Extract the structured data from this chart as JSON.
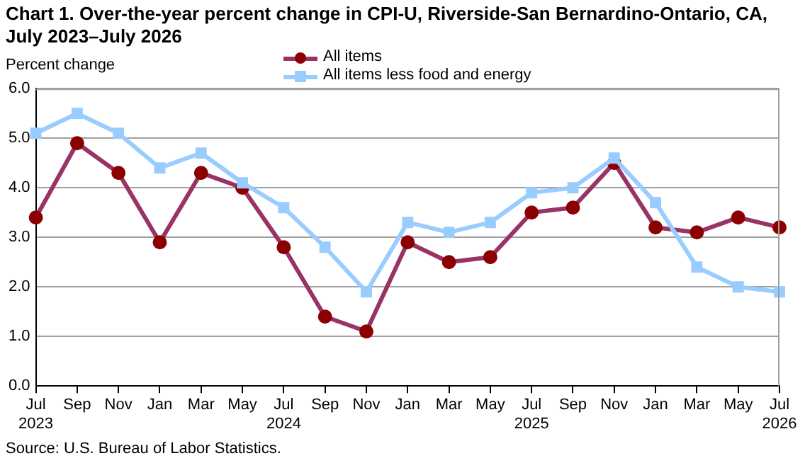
{
  "chart_data": {
    "type": "line",
    "title": "Chart 1. Over-the-year percent change in CPI-U, Riverside-San Bernardino-Ontario, CA, July 2023–July 2026",
    "ylabel": "Percent change",
    "annotations": [
      "Source: U.S. Bureau of Labor Statistics."
    ],
    "categories": [
      "Jul\n2023",
      "Sep",
      "Nov",
      "Jan",
      "Mar",
      "May",
      "Jul\n2024",
      "Sep",
      "Nov",
      "Jan",
      "Mar",
      "May",
      "Jul\n2025",
      "Sep",
      "Nov",
      "Jan",
      "Mar",
      "May",
      "Jul\n2026"
    ],
    "series": [
      {
        "name": "All items",
        "color": "#993366",
        "marker": "circle",
        "values": [
          3.4,
          4.9,
          4.3,
          2.9,
          4.3,
          4.0,
          2.8,
          1.4,
          1.1,
          2.9,
          2.5,
          2.6,
          3.5,
          3.6,
          4.5,
          3.2,
          3.1,
          3.4,
          3.2
        ]
      },
      {
        "name": "All items less food and energy",
        "color": "#99ccff",
        "marker": "square",
        "values": [
          5.1,
          5.5,
          5.1,
          4.4,
          4.7,
          4.1,
          3.6,
          2.8,
          1.9,
          3.3,
          3.1,
          3.3,
          3.9,
          4.0,
          4.6,
          3.7,
          2.4,
          2.0,
          1.9
        ]
      }
    ],
    "ylim": [
      0,
      6
    ],
    "yticks": [
      {
        "value": 0,
        "label": "0.0"
      },
      {
        "value": 1,
        "label": "1.0"
      },
      {
        "value": 2,
        "label": "2.0"
      },
      {
        "value": 3,
        "label": "3.0"
      },
      {
        "value": 4,
        "label": "4.0"
      },
      {
        "value": 5,
        "label": "5.0"
      },
      {
        "value": 6,
        "label": "6.0"
      }
    ],
    "grid": "y",
    "legend": "top"
  }
}
